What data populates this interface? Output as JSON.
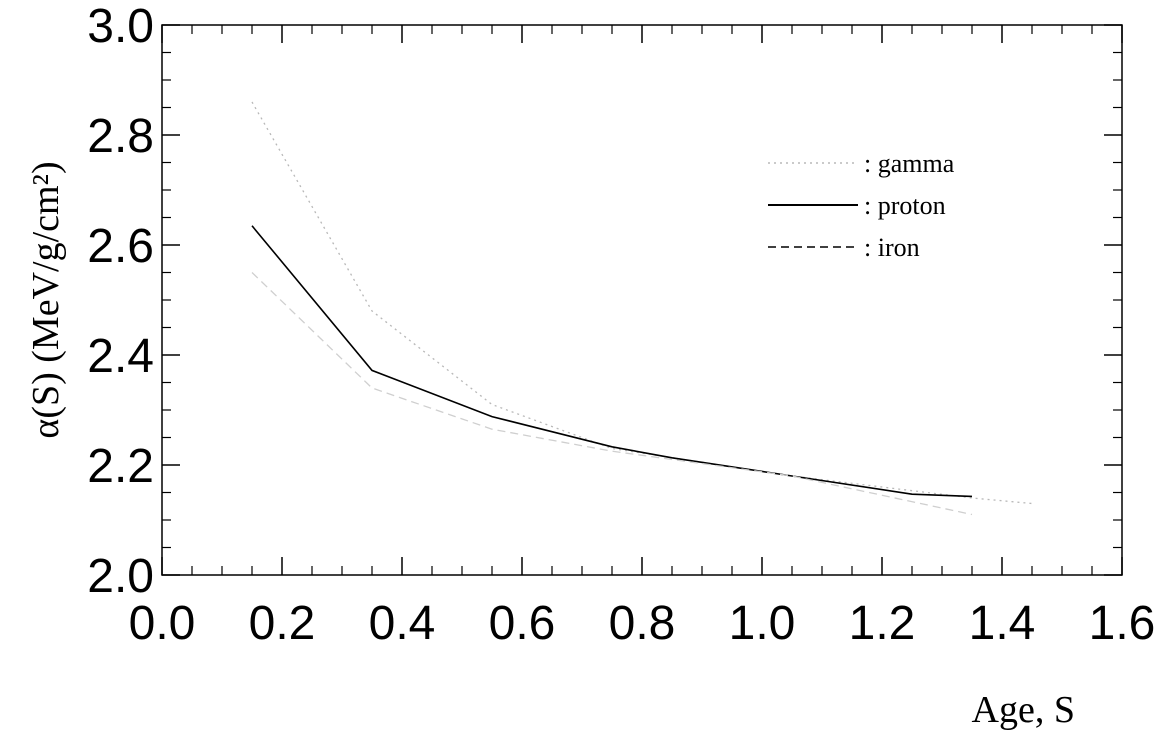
{
  "chart_data": {
    "type": "line",
    "xlabel": "Age, S",
    "ylabel": "α(S) (MeV/g/cm²)",
    "xlim": [
      0.0,
      1.6
    ],
    "ylim": [
      2.0,
      3.0
    ],
    "x_ticks": [
      "0.0",
      "0.2",
      "0.4",
      "0.6",
      "0.8",
      "1.0",
      "1.2",
      "1.4",
      "1.6"
    ],
    "y_ticks": [
      "2.0",
      "2.2",
      "2.4",
      "2.6",
      "2.8",
      "3.0"
    ],
    "grid": false,
    "legend_position": "upper-right",
    "series": [
      {
        "name": ": gamma",
        "style": "dotted",
        "color": "#b8b8b8",
        "x": [
          0.15,
          0.35,
          0.55,
          0.75,
          1.05,
          1.35,
          1.45
        ],
        "y": [
          2.86,
          2.48,
          2.31,
          2.23,
          2.18,
          2.14,
          2.13
        ]
      },
      {
        "name": ": proton",
        "style": "solid",
        "color": "#000000",
        "x": [
          0.15,
          0.35,
          0.55,
          0.75,
          0.85,
          1.05,
          1.25,
          1.35
        ],
        "y": [
          2.635,
          2.372,
          2.288,
          2.233,
          2.213,
          2.18,
          2.147,
          2.143
        ]
      },
      {
        "name": ": iron",
        "style": "dashed",
        "color": "#cfcfcf",
        "x": [
          0.15,
          0.35,
          0.55,
          0.75,
          1.05,
          1.35
        ],
        "y": [
          2.55,
          2.34,
          2.265,
          2.225,
          2.18,
          2.11
        ]
      }
    ]
  }
}
